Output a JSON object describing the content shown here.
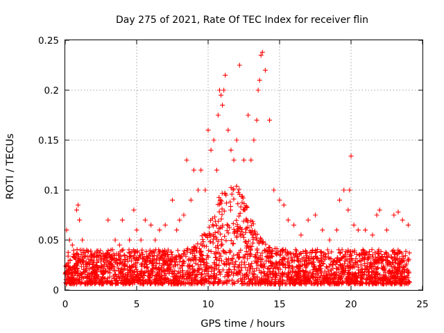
{
  "chart_data": {
    "type": "scatter",
    "title": "Day 275 of 2021, Rate Of TEC Index for receiver flin",
    "xlabel": "GPS time / hours",
    "ylabel": "ROTI / TECUs",
    "xlim": [
      0,
      25
    ],
    "ylim": [
      0,
      0.25
    ],
    "xticks": [
      0,
      5,
      10,
      15,
      20,
      25
    ],
    "xtick_labels": [
      "0",
      "5",
      "10",
      "15",
      "20",
      "25"
    ],
    "yticks": [
      0,
      0.05,
      0.1,
      0.15,
      0.2,
      0.25
    ],
    "ytick_labels": [
      "0",
      "0.05",
      "0.1",
      "0.15",
      "0.2",
      "0.25"
    ],
    "grid": true,
    "marker": "+",
    "color": "#ff0000",
    "series": [
      {
        "name": "ROTI",
        "x": [
          0.1,
          0.3,
          0.5,
          0.8,
          0.9,
          1.0,
          1.2,
          1.5,
          2.0,
          2.3,
          2.5,
          3.0,
          3.2,
          3.5,
          3.8,
          4.0,
          4.2,
          4.5,
          4.8,
          5.0,
          5.3,
          5.6,
          6.0,
          6.3,
          6.6,
          7.0,
          7.2,
          7.5,
          7.8,
          8.0,
          8.3,
          8.5,
          8.8,
          9.0,
          9.3,
          9.5,
          9.8,
          10.0,
          10.2,
          10.4,
          10.6,
          10.7,
          10.8,
          10.9,
          11.0,
          11.1,
          11.2,
          11.4,
          11.6,
          11.8,
          12.0,
          12.2,
          12.5,
          12.8,
          13.0,
          13.2,
          13.4,
          13.5,
          13.6,
          13.7,
          13.8,
          14.0,
          14.3,
          14.6,
          15.0,
          15.3,
          15.6,
          16.0,
          16.5,
          17.0,
          17.5,
          18.0,
          18.5,
          19.0,
          19.2,
          19.5,
          19.8,
          19.9,
          20.0,
          20.2,
          20.5,
          21.0,
          21.5,
          21.8,
          22.0,
          22.5,
          23.0,
          23.3,
          23.6,
          24.0
        ],
        "y": [
          0.06,
          0.05,
          0.045,
          0.08,
          0.085,
          0.07,
          0.05,
          0.04,
          0.035,
          0.03,
          0.035,
          0.07,
          0.04,
          0.05,
          0.045,
          0.07,
          0.03,
          0.05,
          0.08,
          0.06,
          0.05,
          0.07,
          0.065,
          0.05,
          0.06,
          0.065,
          0.04,
          0.09,
          0.06,
          0.07,
          0.075,
          0.13,
          0.09,
          0.12,
          0.1,
          0.12,
          0.1,
          0.16,
          0.14,
          0.15,
          0.12,
          0.175,
          0.2,
          0.195,
          0.185,
          0.2,
          0.215,
          0.16,
          0.14,
          0.13,
          0.15,
          0.225,
          0.13,
          0.175,
          0.13,
          0.15,
          0.17,
          0.2,
          0.21,
          0.235,
          0.238,
          0.22,
          0.17,
          0.1,
          0.09,
          0.085,
          0.07,
          0.065,
          0.055,
          0.07,
          0.075,
          0.06,
          0.05,
          0.06,
          0.09,
          0.1,
          0.08,
          0.1,
          0.134,
          0.065,
          0.06,
          0.06,
          0.055,
          0.075,
          0.08,
          0.06,
          0.075,
          0.078,
          0.07,
          0.065
        ]
      }
    ],
    "note": "Dense field of additional points between about 0.005 and 0.05 across the full day."
  }
}
